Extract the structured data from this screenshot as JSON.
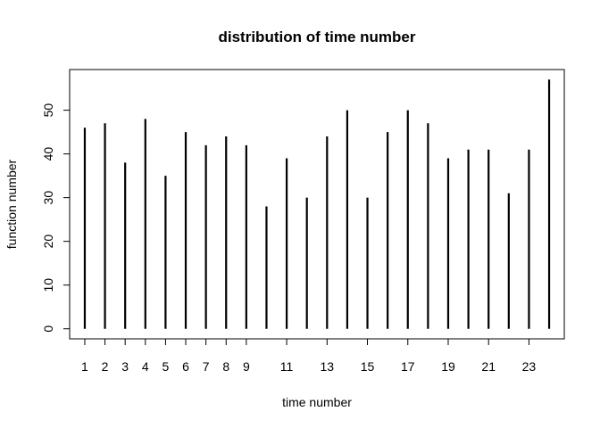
{
  "chart_data": {
    "type": "bar",
    "title": "distribution of time number",
    "xlabel": "time number",
    "ylabel": "function number",
    "x": [
      1,
      2,
      3,
      4,
      5,
      6,
      7,
      8,
      9,
      10,
      11,
      12,
      13,
      14,
      15,
      16,
      17,
      18,
      19,
      20,
      21,
      22,
      23,
      24
    ],
    "values": [
      46,
      47,
      38,
      48,
      35,
      45,
      42,
      44,
      42,
      28,
      39,
      30,
      44,
      50,
      30,
      45,
      50,
      47,
      39,
      41,
      41,
      31,
      41,
      57
    ],
    "x_tick_labels": [
      "1",
      "2",
      "3",
      "4",
      "5",
      "6",
      "7",
      "8",
      "9",
      "11",
      "13",
      "15",
      "17",
      "19",
      "21",
      "23"
    ],
    "y_ticks": [
      0,
      10,
      20,
      30,
      40,
      50
    ],
    "xlim": [
      0.25,
      24.75
    ],
    "ylim": [
      -2.3,
      59.3
    ],
    "grid": false,
    "legend": "none"
  }
}
